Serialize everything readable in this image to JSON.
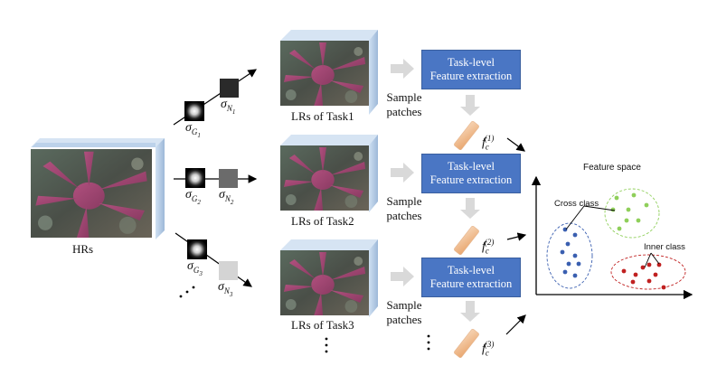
{
  "hr_label": "HRs",
  "tasks": [
    {
      "lr_label": "LRs of Task1",
      "sample": [
        "Sample",
        "patches"
      ],
      "box": [
        "Task-level",
        "Feature extraction"
      ],
      "feature": {
        "base": "f",
        "sub": "c",
        "sup": "(1)"
      }
    },
    {
      "lr_label": "LRs of Task2",
      "sample": [
        "Sample",
        "patches"
      ],
      "box": [
        "Task-level",
        "Feature extraction"
      ],
      "feature": {
        "base": "f",
        "sub": "c",
        "sup": "(2)"
      }
    },
    {
      "lr_label": "LRs of Task3",
      "sample": [
        "Sample",
        "patches"
      ],
      "box": [
        "Task-level",
        "Feature extraction"
      ],
      "feature": {
        "base": "f",
        "sub": "c",
        "sup": "(3)"
      }
    }
  ],
  "degradations": [
    {
      "blur": {
        "sym": "σ",
        "sub": "G",
        "subsub": "1"
      },
      "noise": {
        "sym": "σ",
        "sub": "N",
        "subsub": "1"
      },
      "noise_shade": "#2a2a2a"
    },
    {
      "blur": {
        "sym": "σ",
        "sub": "G",
        "subsub": "2"
      },
      "noise": {
        "sym": "σ",
        "sub": "N",
        "subsub": "2"
      },
      "noise_shade": "#6b6b6b"
    },
    {
      "blur": {
        "sym": "σ",
        "sub": "G",
        "subsub": "3"
      },
      "noise": {
        "sym": "σ",
        "sub": "N",
        "subsub": "3"
      },
      "noise_shade": "#d4d4d4"
    }
  ],
  "feature_space": {
    "title": "Feature space",
    "cross_label": "Cross class",
    "inner_label": "Inner class",
    "colors": {
      "blue": "#3a5fb0",
      "green": "#8fcf5a",
      "red": "#c02020"
    }
  },
  "ellipsis": "⋮",
  "ellipsis_h": "⋱"
}
